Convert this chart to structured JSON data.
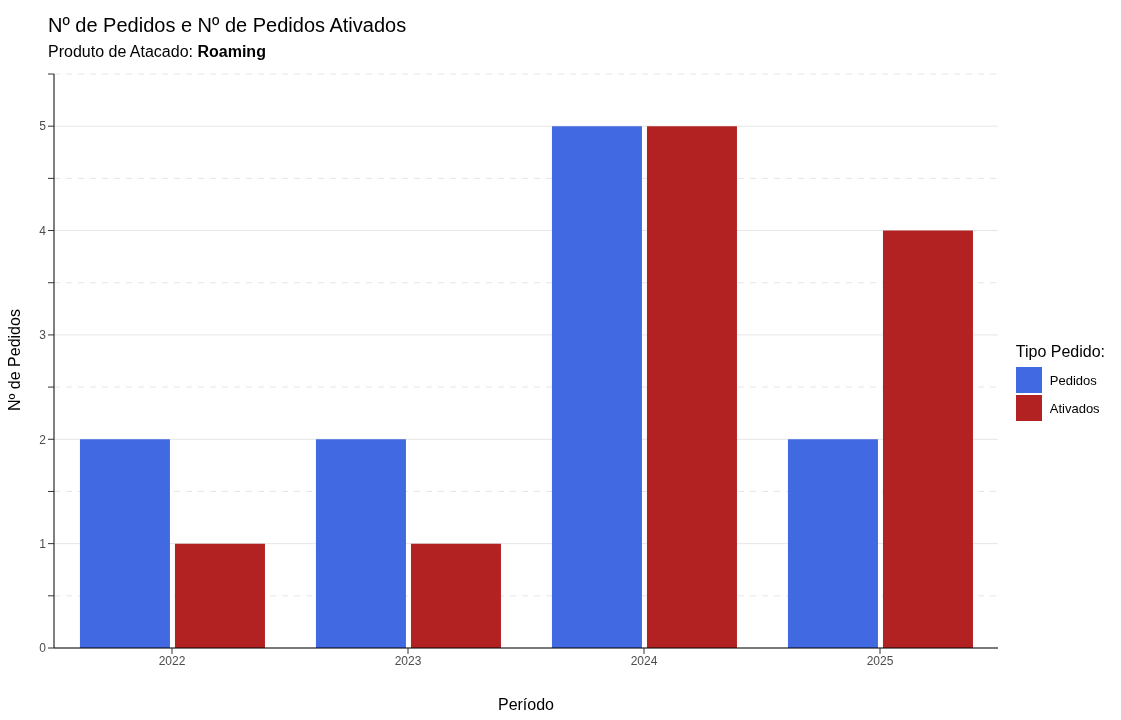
{
  "chart_data": {
    "type": "bar",
    "title": "Nº de Pedidos e Nº de Pedidos Ativados",
    "subtitle": "Produto de Atacado: Roaming",
    "xlabel": "Período",
    "ylabel": "Nº de Pedidos",
    "legend_title": "Tipo Pedido:",
    "categories": [
      "2022",
      "2023",
      "2024",
      "2025"
    ],
    "series": [
      {
        "name": "Pedidos",
        "color": "#4169e1",
        "values": [
          2,
          2,
          5,
          2
        ]
      },
      {
        "name": "Ativados",
        "color": "#b22222",
        "values": [
          1,
          1,
          5,
          4
        ]
      }
    ],
    "ylim": [
      0,
      5.5
    ],
    "yticks": [
      0,
      {
        "value": 0.5,
        "label": null
      },
      1,
      {
        "value": 1.5,
        "label": null
      },
      2,
      {
        "value": 2.5,
        "label": null
      },
      3,
      {
        "value": 3.5,
        "label": null
      },
      4,
      {
        "value": 4.5,
        "label": null
      },
      5,
      {
        "value": 5.5,
        "label": null
      }
    ],
    "grid": "y",
    "legend": "right"
  }
}
